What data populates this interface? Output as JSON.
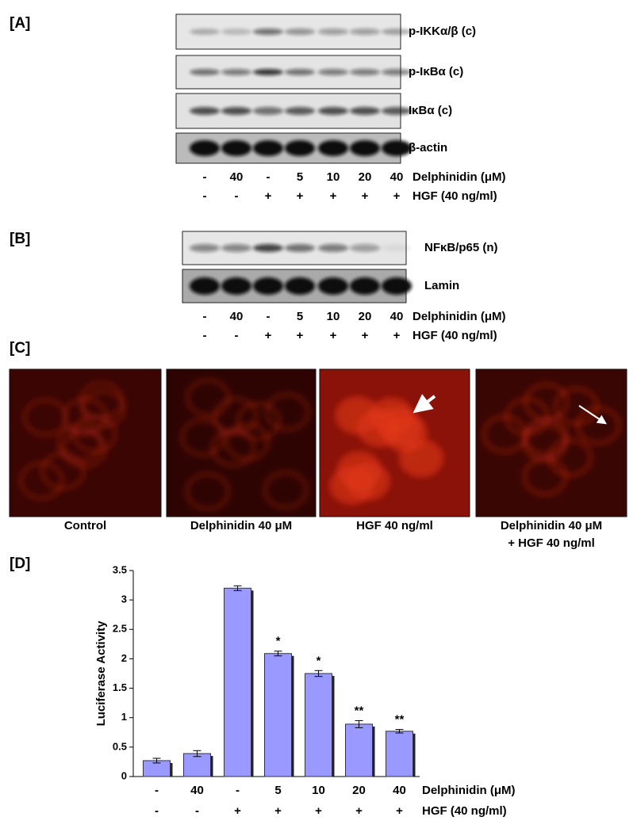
{
  "panel_a": {
    "label": "[A]",
    "blots": [
      "p-IKKα/β (c)",
      "p-IκBα (c)",
      "IκBα (c)",
      "β-actin"
    ],
    "rows": [
      {
        "label": "Delphinidin (μM)",
        "values": [
          "-",
          "40",
          "-",
          "5",
          "10",
          "20",
          "40"
        ]
      },
      {
        "label": "HGF (40 ng/ml)",
        "values": [
          "-",
          "-",
          "+",
          "+",
          "+",
          "+",
          "+"
        ]
      }
    ]
  },
  "panel_b": {
    "label": "[B]",
    "blots": [
      "NFκB/p65 (n)",
      "Lamin"
    ],
    "rows": [
      {
        "label": "Delphinidin (μM)",
        "values": [
          "-",
          "40",
          "-",
          "5",
          "10",
          "20",
          "40"
        ]
      },
      {
        "label": "HGF (40 ng/ml)",
        "values": [
          "-",
          "-",
          "+",
          "+",
          "+",
          "+",
          "+"
        ]
      }
    ]
  },
  "panel_c": {
    "label": "[C]",
    "captions": [
      [
        "Control"
      ],
      [
        "Delphinidin 40 μM"
      ],
      [
        "HGF 40 ng/ml"
      ],
      [
        "Delphinidin 40 μM",
        "+ HGF 40 ng/ml"
      ]
    ]
  },
  "chart_data": {
    "type": "bar",
    "panel_label": "[D]",
    "ylabel": "Luciferase Activity",
    "categories": [
      "-",
      "40",
      "-",
      "5",
      "10",
      "20",
      "40"
    ],
    "categories_label": "Delphinidin (μM)",
    "categories_2": [
      "-",
      "-",
      "+",
      "+",
      "+",
      "+",
      "+"
    ],
    "categories_2_label": "HGF (40 ng/ml)",
    "values": [
      0.27,
      0.39,
      3.2,
      2.09,
      1.75,
      0.89,
      0.77
    ],
    "errors": [
      0.04,
      0.05,
      0.04,
      0.04,
      0.05,
      0.06,
      0.03
    ],
    "significance": [
      null,
      null,
      null,
      "*",
      "*",
      "**",
      "**"
    ],
    "color": "#9999ff",
    "ylim": [
      0,
      3.5
    ],
    "yticks": [
      0,
      0.5,
      1,
      1.5,
      2,
      2.5,
      3,
      3.5
    ]
  }
}
